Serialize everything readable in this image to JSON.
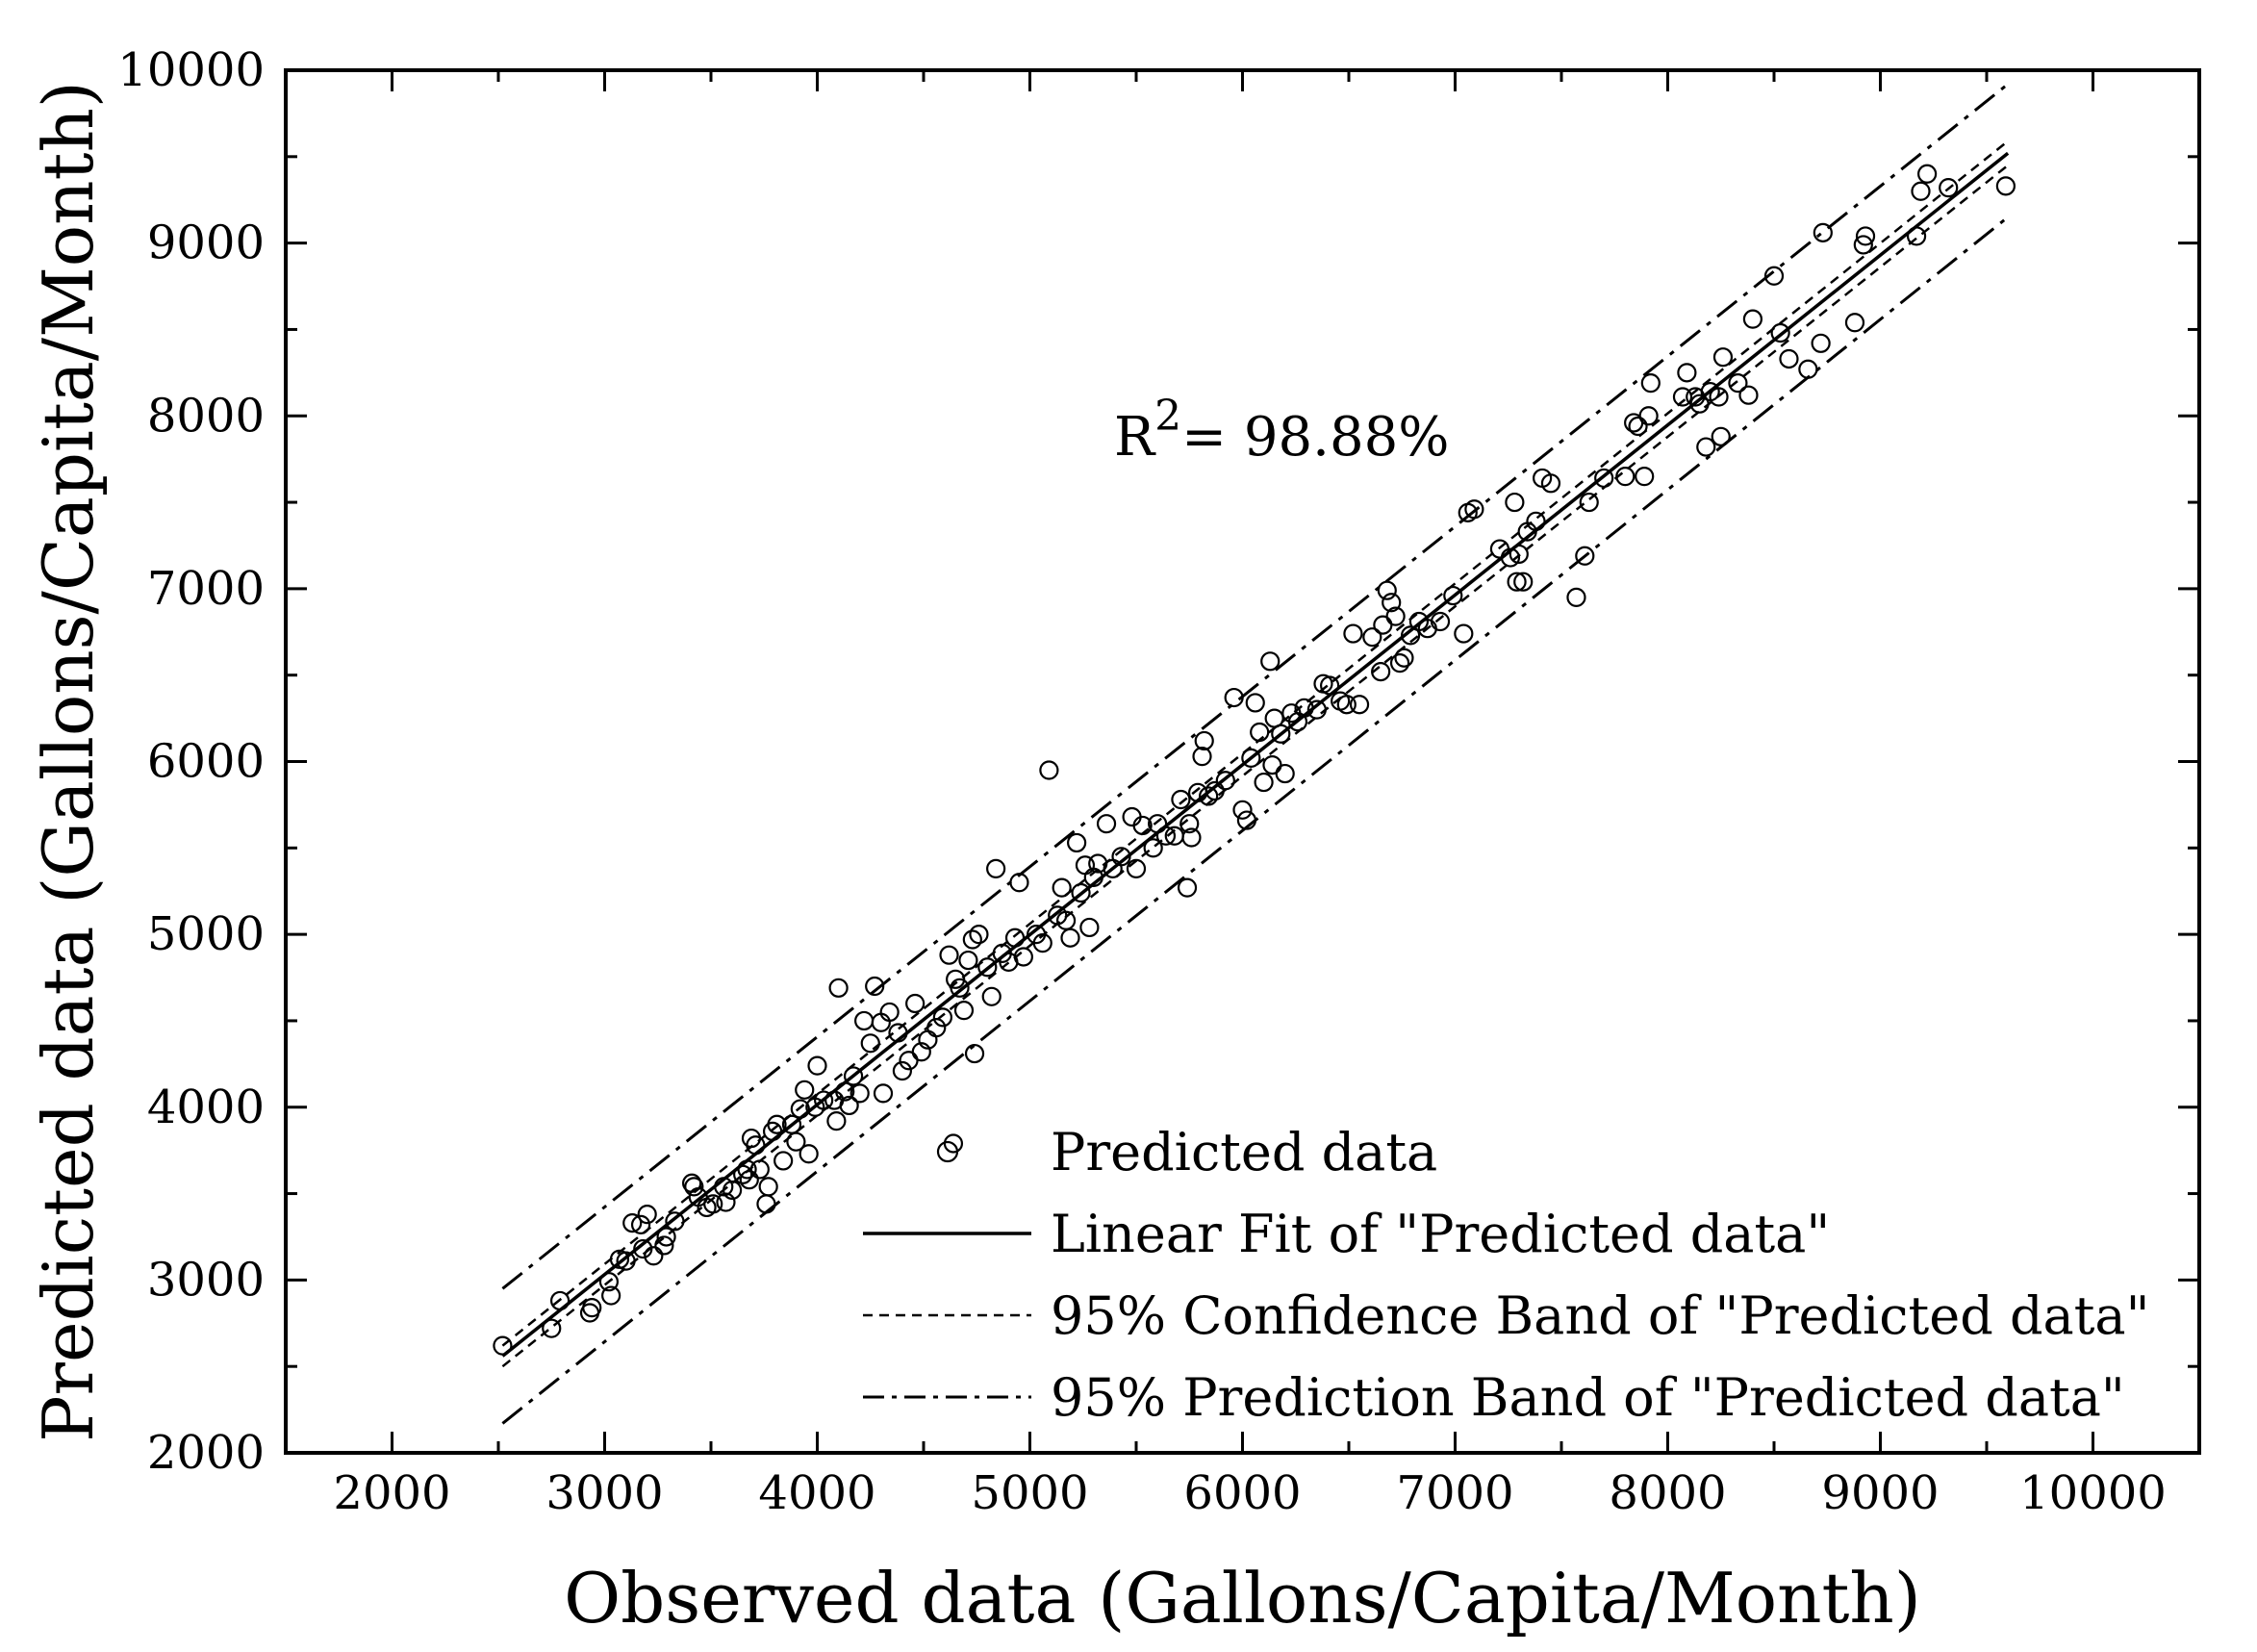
{
  "chart_data": {
    "type": "scatter",
    "xlabel": "Observed data (Gallons/Capita/Month)",
    "ylabel": "Predicted data (Gallons/Capita/Month)",
    "xlim": [
      1500,
      10500
    ],
    "ylim": [
      2000,
      10000
    ],
    "x_ticks": [
      2000,
      3000,
      4000,
      5000,
      6000,
      7000,
      8000,
      9000,
      10000
    ],
    "y_ticks": [
      2000,
      3000,
      4000,
      5000,
      6000,
      7000,
      8000,
      9000,
      10000
    ],
    "x_tick_labels": [
      "2000",
      "3000",
      "4000",
      "5000",
      "6000",
      "7000",
      "8000",
      "9000",
      "10000"
    ],
    "y_tick_labels": [
      "2000",
      "3000",
      "4000",
      "5000",
      "6000",
      "7000",
      "8000",
      "9000",
      "10000"
    ],
    "grid": false,
    "legend_position": "bottom-right",
    "annotation": {
      "base": "R",
      "superscript": "2",
      "text": "= 98.88%"
    },
    "legend": [
      {
        "label": "Predicted data",
        "style": "circle"
      },
      {
        "label": "Linear Fit of \"Predicted data\"",
        "style": "solid"
      },
      {
        "label": "95% Confidence Band of \"Predicted data\"",
        "style": "dashed"
      },
      {
        "label": "95% Prediction Band of \"Predicted data\"",
        "style": "dashdot"
      }
    ],
    "lines": {
      "x_range": [
        2520,
        9600
      ],
      "fit": {
        "y": [
          2560,
          9520
        ]
      },
      "confidence_upper": {
        "y": [
          2620,
          9590
        ]
      },
      "confidence_lower": {
        "y": [
          2500,
          9450
        ]
      },
      "prediction_upper": {
        "y": [
          2950,
          9920
        ]
      },
      "prediction_lower": {
        "y": [
          2170,
          9150
        ]
      }
    },
    "series": [
      {
        "name": "Predicted data",
        "points": [
          [
            2520,
            2620
          ],
          [
            2750,
            2720
          ],
          [
            2790,
            2880
          ],
          [
            2930,
            2810
          ],
          [
            2940,
            2840
          ],
          [
            3020,
            2990
          ],
          [
            3030,
            2910
          ],
          [
            3070,
            3120
          ],
          [
            3100,
            3110
          ],
          [
            3130,
            3330
          ],
          [
            3170,
            3320
          ],
          [
            3180,
            3180
          ],
          [
            3200,
            3380
          ],
          [
            3230,
            3140
          ],
          [
            3280,
            3200
          ],
          [
            3290,
            3250
          ],
          [
            3330,
            3340
          ],
          [
            3410,
            3560
          ],
          [
            3420,
            3540
          ],
          [
            3440,
            3480
          ],
          [
            3480,
            3420
          ],
          [
            3510,
            3440
          ],
          [
            3560,
            3540
          ],
          [
            3570,
            3450
          ],
          [
            3600,
            3520
          ],
          [
            3650,
            3610
          ],
          [
            3670,
            3640
          ],
          [
            3680,
            3580
          ],
          [
            3690,
            3820
          ],
          [
            3710,
            3780
          ],
          [
            3730,
            3640
          ],
          [
            3760,
            3440
          ],
          [
            3770,
            3540
          ],
          [
            3790,
            3860
          ],
          [
            3810,
            3900
          ],
          [
            3840,
            3690
          ],
          [
            3880,
            3900
          ],
          [
            3900,
            3800
          ],
          [
            3920,
            3990
          ],
          [
            3940,
            4100
          ],
          [
            3960,
            3730
          ],
          [
            3990,
            4000
          ],
          [
            4000,
            4240
          ],
          [
            4030,
            4040
          ],
          [
            4080,
            4040
          ],
          [
            4090,
            3920
          ],
          [
            4100,
            4690
          ],
          [
            4130,
            4090
          ],
          [
            4150,
            4010
          ],
          [
            4170,
            4180
          ],
          [
            4200,
            4080
          ],
          [
            4220,
            4500
          ],
          [
            4250,
            4370
          ],
          [
            4270,
            4700
          ],
          [
            4300,
            4490
          ],
          [
            4310,
            4080
          ],
          [
            4340,
            4550
          ],
          [
            4380,
            4430
          ],
          [
            4400,
            4210
          ],
          [
            4430,
            4270
          ],
          [
            4460,
            4600
          ],
          [
            4490,
            4320
          ],
          [
            4520,
            4390
          ],
          [
            4560,
            4460
          ],
          [
            4590,
            4520
          ],
          [
            4620,
            4880
          ],
          [
            4640,
            3790
          ],
          [
            4650,
            4740
          ],
          [
            4670,
            4690
          ],
          [
            4690,
            4560
          ],
          [
            4710,
            4850
          ],
          [
            4730,
            4970
          ],
          [
            4740,
            4310
          ],
          [
            4760,
            5000
          ],
          [
            4800,
            4810
          ],
          [
            4820,
            4640
          ],
          [
            4840,
            5380
          ],
          [
            4870,
            4890
          ],
          [
            4900,
            4840
          ],
          [
            4930,
            4980
          ],
          [
            4950,
            5300
          ],
          [
            4970,
            4870
          ],
          [
            5030,
            5000
          ],
          [
            5060,
            4950
          ],
          [
            5090,
            5950
          ],
          [
            5130,
            5110
          ],
          [
            5150,
            5270
          ],
          [
            5170,
            5080
          ],
          [
            5190,
            4980
          ],
          [
            5220,
            5530
          ],
          [
            5240,
            5240
          ],
          [
            5260,
            5400
          ],
          [
            5280,
            5040
          ],
          [
            5300,
            5330
          ],
          [
            5320,
            5410
          ],
          [
            5360,
            5640
          ],
          [
            5390,
            5380
          ],
          [
            5430,
            5450
          ],
          [
            5480,
            5680
          ],
          [
            5500,
            5380
          ],
          [
            5530,
            5630
          ],
          [
            5580,
            5500
          ],
          [
            5600,
            5640
          ],
          [
            5640,
            5570
          ],
          [
            5680,
            5570
          ],
          [
            5710,
            5780
          ],
          [
            5740,
            5270
          ],
          [
            5750,
            5640
          ],
          [
            5760,
            5560
          ],
          [
            5790,
            5820
          ],
          [
            5810,
            6030
          ],
          [
            5820,
            6120
          ],
          [
            5840,
            5800
          ],
          [
            5870,
            5830
          ],
          [
            5920,
            5890
          ],
          [
            5960,
            6370
          ],
          [
            6000,
            5720
          ],
          [
            6020,
            5660
          ],
          [
            6040,
            6020
          ],
          [
            6060,
            6340
          ],
          [
            6080,
            6170
          ],
          [
            6100,
            5880
          ],
          [
            6130,
            6580
          ],
          [
            6140,
            5980
          ],
          [
            6150,
            6250
          ],
          [
            6180,
            6160
          ],
          [
            6200,
            5930
          ],
          [
            6230,
            6280
          ],
          [
            6260,
            6230
          ],
          [
            6290,
            6310
          ],
          [
            6350,
            6300
          ],
          [
            6380,
            6450
          ],
          [
            6410,
            6440
          ],
          [
            6460,
            6350
          ],
          [
            6490,
            6330
          ],
          [
            6520,
            6740
          ],
          [
            6550,
            6330
          ],
          [
            6610,
            6720
          ],
          [
            6650,
            6520
          ],
          [
            6660,
            6790
          ],
          [
            6680,
            6990
          ],
          [
            6700,
            6920
          ],
          [
            6720,
            6840
          ],
          [
            6740,
            6570
          ],
          [
            6760,
            6600
          ],
          [
            6790,
            6730
          ],
          [
            6830,
            6810
          ],
          [
            6870,
            6770
          ],
          [
            6930,
            6810
          ],
          [
            6990,
            6960
          ],
          [
            7040,
            6740
          ],
          [
            7060,
            7440
          ],
          [
            7090,
            7460
          ],
          [
            7210,
            7230
          ],
          [
            7260,
            7180
          ],
          [
            7280,
            7500
          ],
          [
            7290,
            7040
          ],
          [
            7300,
            7200
          ],
          [
            7320,
            7040
          ],
          [
            7340,
            7330
          ],
          [
            7380,
            7390
          ],
          [
            7410,
            7640
          ],
          [
            7450,
            7610
          ],
          [
            7570,
            6950
          ],
          [
            7610,
            7190
          ],
          [
            7630,
            7500
          ],
          [
            7700,
            7640
          ],
          [
            7800,
            7650
          ],
          [
            7840,
            7960
          ],
          [
            7860,
            7940
          ],
          [
            7890,
            7650
          ],
          [
            7910,
            8000
          ],
          [
            7920,
            8190
          ],
          [
            8070,
            8110
          ],
          [
            8090,
            8250
          ],
          [
            8130,
            8110
          ],
          [
            8150,
            8070
          ],
          [
            8180,
            7820
          ],
          [
            8200,
            8140
          ],
          [
            8240,
            8110
          ],
          [
            8250,
            7880
          ],
          [
            8260,
            8340
          ],
          [
            8330,
            8190
          ],
          [
            8380,
            8120
          ],
          [
            8400,
            8560
          ],
          [
            8500,
            8810
          ],
          [
            8530,
            8480
          ],
          [
            8570,
            8330
          ],
          [
            8660,
            8270
          ],
          [
            8720,
            8420
          ],
          [
            8730,
            9060
          ],
          [
            8880,
            8540
          ],
          [
            8920,
            8990
          ],
          [
            8930,
            9040
          ],
          [
            9170,
            9040
          ],
          [
            9190,
            9300
          ],
          [
            9220,
            9400
          ],
          [
            9320,
            9320
          ],
          [
            9590,
            9330
          ]
        ]
      }
    ]
  }
}
